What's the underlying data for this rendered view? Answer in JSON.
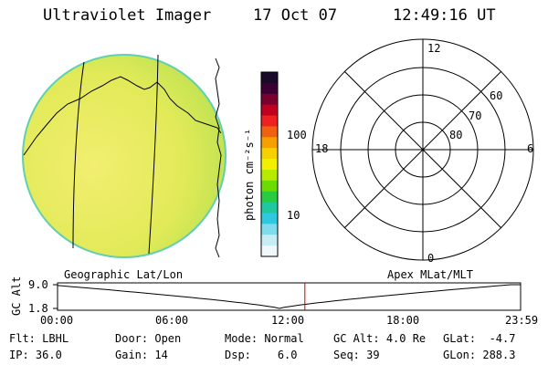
{
  "header": {
    "instrument": "Ultraviolet Imager",
    "date": "17 Oct 07",
    "time": "12:49:16 UT"
  },
  "colorbar": {
    "unit_label": "photon cm⁻²s⁻¹",
    "ticks": [
      "100",
      "10"
    ],
    "colors": [
      "#1a0a2a",
      "#3a0033",
      "#7a0030",
      "#c00020",
      "#ee2020",
      "#f06010",
      "#f5a000",
      "#f7d000",
      "#f2f000",
      "#b8ea00",
      "#6cdc00",
      "#28cc40",
      "#20c8a0",
      "#30c8e0",
      "#80dcec",
      "#c8ecf4",
      "#f0f8fa"
    ]
  },
  "polar": {
    "mlt_labels": {
      "top": "12",
      "left": "18",
      "right": "6",
      "bottom": "0"
    },
    "lat_labels": [
      "60",
      "70",
      "80"
    ]
  },
  "globe_label": "Geographic Lat/Lon",
  "polar_label": "Apex MLat/MLT",
  "alt_plot": {
    "axis_label": "GC Alt",
    "y_ticks": [
      "9.0",
      "1.8"
    ],
    "x_ticks": [
      "00:00",
      "06:00",
      "12:00",
      "18:00",
      "23:59"
    ],
    "current_hour": 12.82,
    "marker_color": "#cc0000"
  },
  "status": {
    "row1": [
      {
        "label": "Flt:",
        "value": "LBHL"
      },
      {
        "label": "Door:",
        "value": "Open"
      },
      {
        "label": "Mode:",
        "value": "Normal"
      },
      {
        "label": "GC Alt:",
        "value": "4.0 Re"
      },
      {
        "label": "GLat:",
        "value": "-4.7"
      }
    ],
    "row2": [
      {
        "label": "IP:",
        "value": "36.0"
      },
      {
        "label": "Gain:",
        "value": "14"
      },
      {
        "label": "Dsp:",
        "value": "6.0"
      },
      {
        "label": "Seq:",
        "value": "39"
      },
      {
        "label": "GLon:",
        "value": "288.3"
      }
    ]
  }
}
